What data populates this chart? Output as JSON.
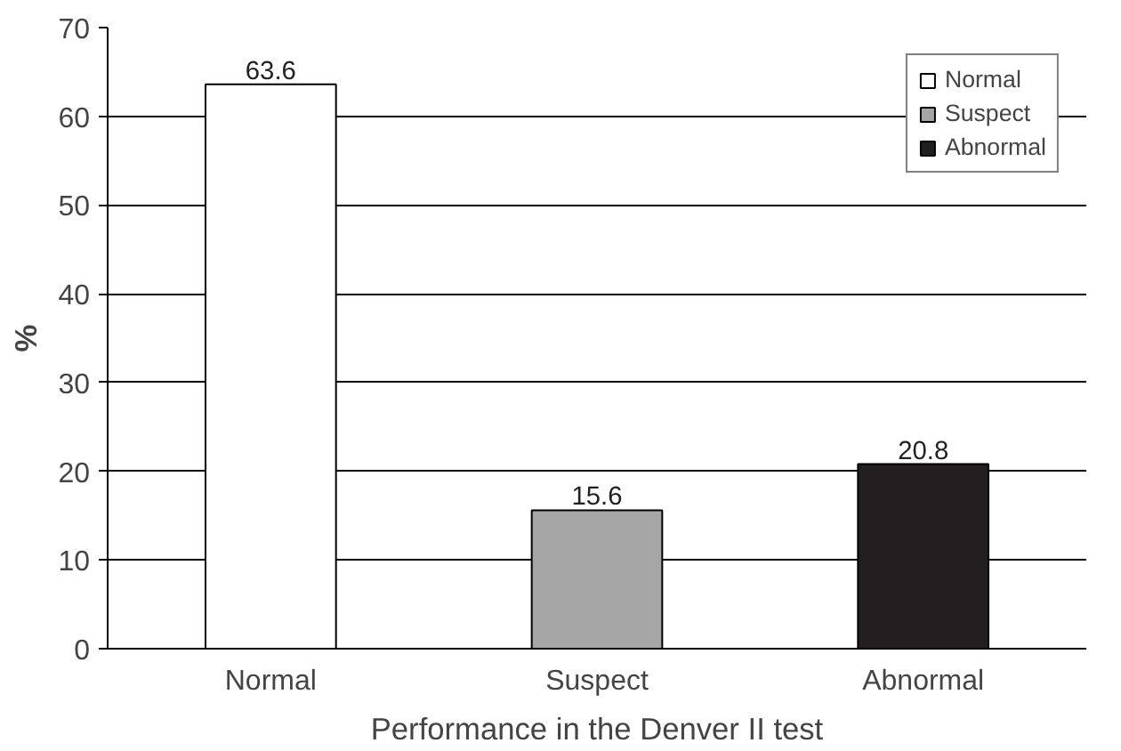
{
  "chart_data": {
    "type": "bar",
    "xlabel": "Performance in the Denver II test",
    "ylabel": "%",
    "categories": [
      "Normal",
      "Suspect",
      "Abnormal"
    ],
    "series": [
      {
        "name": "Normal",
        "color": "#ffffff",
        "values": [
          63.6,
          null,
          null
        ]
      },
      {
        "name": "Suspect",
        "color": "#a6a6a6",
        "values": [
          null,
          15.6,
          null
        ]
      },
      {
        "name": "Abnormal",
        "color": "#231f20",
        "values": [
          null,
          null,
          20.8
        ]
      }
    ],
    "stacked": true,
    "ylim": [
      0,
      70
    ],
    "yticks": [
      0,
      10,
      20,
      30,
      40,
      50,
      60,
      70
    ],
    "grid": "y",
    "legend": "top right",
    "data_labels": true
  }
}
